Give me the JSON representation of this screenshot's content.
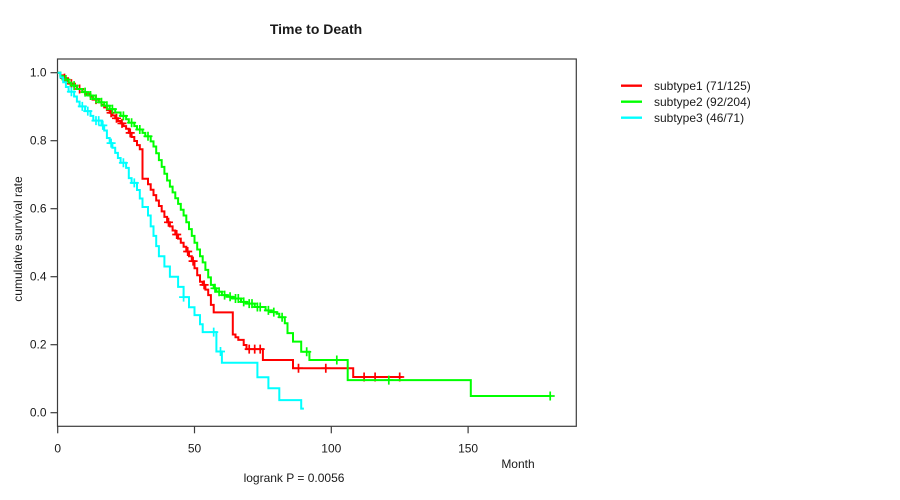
{
  "chart_data": {
    "type": "line",
    "subtype": "kaplan-meier-step-curves",
    "title": "Time to Death",
    "xlabel": "Month",
    "ylabel": "cumulative survival rate",
    "annotation": "logrank P = 0.0056",
    "xlim": [
      0,
      189
    ],
    "ylim": [
      0,
      1.0
    ],
    "x_ticks": [
      0,
      50,
      100,
      150
    ],
    "y_ticks": [
      0,
      0.2,
      0.4,
      0.6,
      0.8,
      1.0
    ],
    "y_tick_labels": [
      "0.0",
      "0.2",
      "0.4",
      "0.6",
      "0.8",
      "1.0"
    ],
    "grid": false,
    "legend_position": "right-outside",
    "series": [
      {
        "name": "subtype1",
        "legend_label": "subtype1 (71/125)",
        "color": "#ff0000",
        "events": 71,
        "n": 125,
        "end_time": 126,
        "steps": [
          [
            0,
            1.0
          ],
          [
            1,
            0.992
          ],
          [
            2,
            0.984
          ],
          [
            3,
            0.976
          ],
          [
            4,
            0.968
          ],
          [
            6,
            0.96
          ],
          [
            7,
            0.952
          ],
          [
            9,
            0.944
          ],
          [
            10,
            0.937
          ],
          [
            12,
            0.929
          ],
          [
            13,
            0.921
          ],
          [
            15,
            0.913
          ],
          [
            16,
            0.905
          ],
          [
            17,
            0.898
          ],
          [
            18,
            0.89
          ],
          [
            19,
            0.882
          ],
          [
            20,
            0.874
          ],
          [
            21,
            0.866
          ],
          [
            22,
            0.858
          ],
          [
            23,
            0.851
          ],
          [
            24,
            0.843
          ],
          [
            25,
            0.835
          ],
          [
            26,
            0.823
          ],
          [
            27,
            0.811
          ],
          [
            28,
            0.799
          ],
          [
            29,
            0.787
          ],
          [
            30,
            0.775
          ],
          [
            31,
            0.688
          ],
          [
            33,
            0.672
          ],
          [
            34,
            0.656
          ],
          [
            35,
            0.64
          ],
          [
            36,
            0.624
          ],
          [
            37,
            0.608
          ],
          [
            38,
            0.592
          ],
          [
            39,
            0.576
          ],
          [
            40,
            0.56
          ],
          [
            41,
            0.548
          ],
          [
            42,
            0.536
          ],
          [
            43,
            0.524
          ],
          [
            44,
            0.512
          ],
          [
            45,
            0.5
          ],
          [
            46,
            0.488
          ],
          [
            47,
            0.474
          ],
          [
            48,
            0.46
          ],
          [
            49,
            0.446
          ],
          [
            50,
            0.425
          ],
          [
            51,
            0.404
          ],
          [
            52,
            0.385
          ],
          [
            53,
            0.376
          ],
          [
            54,
            0.362
          ],
          [
            55,
            0.346
          ],
          [
            56,
            0.317
          ],
          [
            57,
            0.295
          ],
          [
            64,
            0.23
          ],
          [
            65,
            0.222
          ],
          [
            66,
            0.214
          ],
          [
            68,
            0.199
          ],
          [
            69,
            0.187
          ],
          [
            75,
            0.155
          ],
          [
            86,
            0.131
          ],
          [
            108,
            0.105
          ]
        ],
        "censor_times": [
          2.5,
          5,
          8,
          14,
          19.5,
          21.5,
          23.5,
          26.5,
          40.5,
          43.5,
          47.5,
          49.5,
          53.5,
          70,
          72,
          74,
          88,
          98,
          112,
          116,
          125
        ]
      },
      {
        "name": "subtype2",
        "legend_label": "subtype2 (92/204)",
        "color": "#00ff00",
        "events": 92,
        "n": 204,
        "end_time": 180,
        "steps": [
          [
            0,
            1.0
          ],
          [
            1,
            0.99
          ],
          [
            2,
            0.98
          ],
          [
            4,
            0.971
          ],
          [
            5,
            0.962
          ],
          [
            7,
            0.952
          ],
          [
            9,
            0.943
          ],
          [
            11,
            0.933
          ],
          [
            13,
            0.923
          ],
          [
            15,
            0.913
          ],
          [
            17,
            0.903
          ],
          [
            19,
            0.893
          ],
          [
            21,
            0.883
          ],
          [
            23,
            0.873
          ],
          [
            25,
            0.863
          ],
          [
            26,
            0.853
          ],
          [
            28,
            0.843
          ],
          [
            29,
            0.833
          ],
          [
            31,
            0.823
          ],
          [
            32,
            0.813
          ],
          [
            34,
            0.798
          ],
          [
            35,
            0.783
          ],
          [
            36,
            0.763
          ],
          [
            37,
            0.743
          ],
          [
            38,
            0.723
          ],
          [
            39,
            0.703
          ],
          [
            40,
            0.683
          ],
          [
            41,
            0.665
          ],
          [
            42,
            0.648
          ],
          [
            43,
            0.631
          ],
          [
            44,
            0.614
          ],
          [
            45,
            0.597
          ],
          [
            46,
            0.58
          ],
          [
            47,
            0.56
          ],
          [
            48,
            0.54
          ],
          [
            49,
            0.52
          ],
          [
            50,
            0.5
          ],
          [
            51,
            0.48
          ],
          [
            52,
            0.46
          ],
          [
            53,
            0.442
          ],
          [
            54,
            0.42
          ],
          [
            55,
            0.398
          ],
          [
            56,
            0.376
          ],
          [
            57,
            0.366
          ],
          [
            58,
            0.356
          ],
          [
            60,
            0.346
          ],
          [
            62,
            0.341
          ],
          [
            64,
            0.336
          ],
          [
            67,
            0.326
          ],
          [
            69,
            0.321
          ],
          [
            72,
            0.311
          ],
          [
            76,
            0.301
          ],
          [
            78,
            0.296
          ],
          [
            80,
            0.291
          ],
          [
            81,
            0.281
          ],
          [
            83,
            0.263
          ],
          [
            84,
            0.234
          ],
          [
            86,
            0.209
          ],
          [
            89,
            0.179
          ],
          [
            92,
            0.155
          ],
          [
            106,
            0.096
          ],
          [
            151,
            0.049
          ]
        ],
        "censor_times": [
          3,
          6,
          10,
          12,
          14,
          16,
          18,
          20,
          24,
          27,
          30,
          33,
          57.5,
          59,
          61,
          63,
          65,
          66,
          68,
          70,
          71,
          73,
          74,
          77,
          79,
          82,
          91,
          102,
          121,
          180
        ]
      },
      {
        "name": "subtype3",
        "legend_label": "subtype3 (46/71)",
        "color": "#00ffff",
        "events": 46,
        "n": 71,
        "end_time": 90,
        "steps": [
          [
            0,
            1.0
          ],
          [
            1,
            0.986
          ],
          [
            2,
            0.972
          ],
          [
            3,
            0.958
          ],
          [
            4,
            0.944
          ],
          [
            6,
            0.93
          ],
          [
            7,
            0.915
          ],
          [
            8,
            0.901
          ],
          [
            10,
            0.887
          ],
          [
            12,
            0.873
          ],
          [
            13,
            0.859
          ],
          [
            16,
            0.845
          ],
          [
            17,
            0.83
          ],
          [
            18,
            0.808
          ],
          [
            19,
            0.793
          ],
          [
            20,
            0.779
          ],
          [
            21,
            0.764
          ],
          [
            22,
            0.749
          ],
          [
            23,
            0.735
          ],
          [
            25,
            0.72
          ],
          [
            26,
            0.69
          ],
          [
            27,
            0.676
          ],
          [
            29,
            0.655
          ],
          [
            30,
            0.63
          ],
          [
            31,
            0.605
          ],
          [
            33,
            0.58
          ],
          [
            34,
            0.548
          ],
          [
            35,
            0.52
          ],
          [
            36,
            0.49
          ],
          [
            37,
            0.46
          ],
          [
            39,
            0.43
          ],
          [
            41,
            0.4
          ],
          [
            44,
            0.37
          ],
          [
            46,
            0.34
          ],
          [
            48,
            0.31
          ],
          [
            50,
            0.287
          ],
          [
            52,
            0.26
          ],
          [
            53,
            0.237
          ],
          [
            58,
            0.18
          ],
          [
            60,
            0.147
          ],
          [
            73,
            0.104
          ],
          [
            77,
            0.072
          ],
          [
            81,
            0.037
          ],
          [
            89,
            0.012
          ]
        ],
        "censor_times": [
          5,
          9,
          11,
          14,
          15,
          16.5,
          19.5,
          24,
          28,
          46,
          57,
          59.5
        ]
      }
    ]
  }
}
